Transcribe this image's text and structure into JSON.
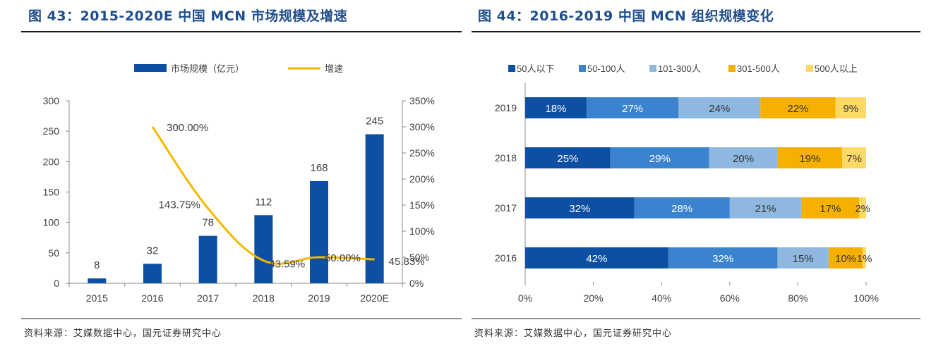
{
  "left_figure": {
    "title": "图 43：2015-2020E 中国 MCN 市场规模及增速",
    "source": "资料来源：艾媒数据中心，国元证券研究中心"
  },
  "right_figure": {
    "title": "图 44：2016-2019 中国 MCN 组织规模变化",
    "source": "资料来源：艾媒数据中心，国元证券研究中心"
  },
  "colors": {
    "bar_dark": "#0d4fa3",
    "line": "#f5b800",
    "seg1": "#0d4fa3",
    "seg2": "#3b83cf",
    "seg3": "#8fb8e0",
    "seg4": "#f5b000",
    "seg5": "#ffd966",
    "title": "#1f4e8c"
  },
  "chart_data": [
    {
      "type": "bar",
      "categories": [
        "2015",
        "2016",
        "2017",
        "2018",
        "2019",
        "2020E"
      ],
      "series": [
        {
          "name": "市场规模（亿元）",
          "type": "bar",
          "axis": "left",
          "values": [
            8,
            32,
            78,
            112,
            168,
            245
          ],
          "labels": [
            "8",
            "32",
            "78",
            "112",
            "168",
            "245"
          ]
        },
        {
          "name": "增速",
          "type": "line",
          "axis": "right",
          "values": [
            null,
            300.0,
            143.75,
            43.59,
            50.0,
            45.83
          ],
          "labels": [
            "",
            "300.00%",
            "143.75%",
            "43.59%",
            "50.00%",
            "45.83%"
          ]
        }
      ],
      "ylim": [
        0,
        300
      ],
      "yticks": [
        "0",
        "50",
        "100",
        "150",
        "200",
        "250",
        "300"
      ],
      "y2lim": [
        0,
        350
      ],
      "y2ticks": [
        "0%",
        "50%",
        "100%",
        "150%",
        "200%",
        "250%",
        "300%",
        "350%"
      ],
      "legend": "top"
    },
    {
      "type": "bar",
      "orientation": "horizontal",
      "stacked": true,
      "categories": [
        "2019",
        "2018",
        "2017",
        "2016"
      ],
      "series": [
        {
          "name": "50人以下",
          "values": [
            18,
            25,
            32,
            42
          ]
        },
        {
          "name": "50-100人",
          "values": [
            27,
            29,
            28,
            32
          ]
        },
        {
          "name": "101-300人",
          "values": [
            24,
            20,
            21,
            15
          ]
        },
        {
          "name": "301-500人",
          "values": [
            22,
            19,
            17,
            10
          ]
        },
        {
          "name": "500人以上",
          "values": [
            9,
            7,
            2,
            1
          ]
        }
      ],
      "xlim": [
        0,
        100
      ],
      "xticks": [
        "0%",
        "20%",
        "40%",
        "60%",
        "80%",
        "100%"
      ],
      "legend": "top"
    }
  ]
}
